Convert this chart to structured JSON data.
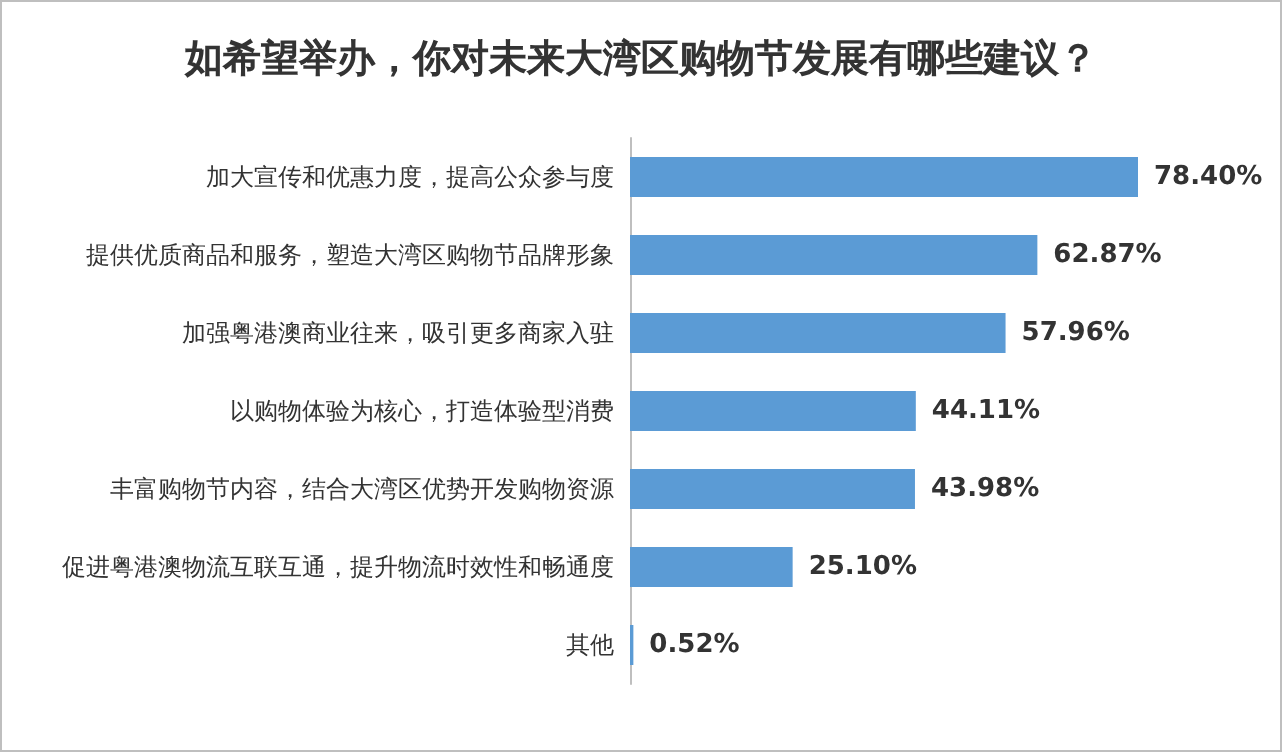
{
  "chart_data": {
    "type": "bar",
    "orientation": "horizontal",
    "title": "如希望举办，你对未来大湾区购物节发展有哪些建议？",
    "categories": [
      "加大宣传和优惠力度，提高公众参与度",
      "提供优质商品和服务，塑造大湾区购物节品牌形象",
      "加强粤港澳商业往来，吸引更多商家入驻",
      "以购物体验为核心，打造体验型消费",
      "丰富购物节内容，结合大湾区优势开发购物资源",
      "促进粤港澳物流互联互通，提升物流时效性和畅通度",
      "其他"
    ],
    "values": [
      78.4,
      62.87,
      57.96,
      44.11,
      43.98,
      25.1,
      0.52
    ],
    "value_labels": [
      "78.40%",
      "62.87%",
      "57.96%",
      "44.11%",
      "43.98%",
      "25.10%",
      "0.52%"
    ],
    "color": "#5b9bd5"
  }
}
